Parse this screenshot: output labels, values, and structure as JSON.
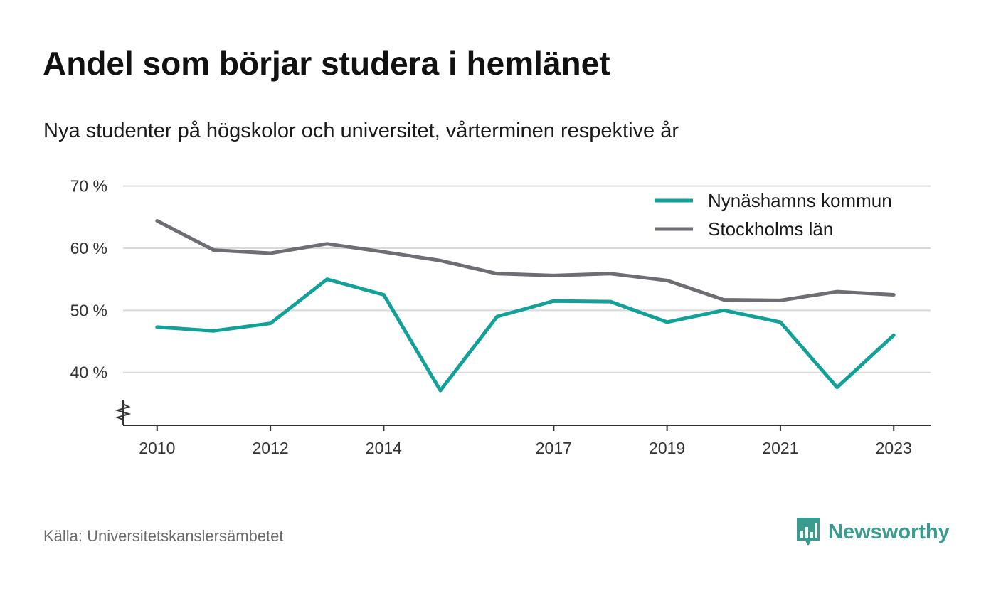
{
  "title": "Andel som börjar studera i hemlänet",
  "subtitle": "Nya studenter på högskolor och universitet, vårterminen respektive år",
  "source": "Källa: Universitetskanslersämbetet",
  "brand": "Newsworthy",
  "colors": {
    "nynashamn": "#12a198",
    "stockholm": "#6e6d73",
    "grid": "#d9d9d9",
    "axis": "#333333",
    "brand": "#3a9c8f"
  },
  "chart_data": {
    "type": "line",
    "title": "Andel som börjar studera i hemlänet",
    "subtitle": "Nya studenter på högskolor och universitet, vårterminen respektive år",
    "x": [
      2010,
      2011,
      2012,
      2013,
      2014,
      2015,
      2016,
      2017,
      2018,
      2019,
      2020,
      2021,
      2022,
      2023
    ],
    "x_tick_labels": [
      "2010",
      "2012",
      "2014",
      "2017",
      "2019",
      "2021",
      "2023"
    ],
    "y_tick_labels": [
      "70 %",
      "60 %",
      "50 %",
      "40 %"
    ],
    "y_ticks": [
      70,
      60,
      50,
      40
    ],
    "xlim": [
      2009.4,
      2023.65
    ],
    "ylim": [
      31.5,
      73.5
    ],
    "y_axis_break": true,
    "grid": true,
    "legend_position": "top-right",
    "series": [
      {
        "name": "Nynäshamns kommun",
        "color": "#12a198",
        "values": [
          47.3,
          46.7,
          47.9,
          55.0,
          52.5,
          37.1,
          49.0,
          51.5,
          51.4,
          48.1,
          50.0,
          48.1,
          37.6,
          46.0
        ]
      },
      {
        "name": "Stockholms län",
        "color": "#6e6d73",
        "values": [
          64.4,
          59.7,
          59.2,
          60.7,
          59.4,
          58.0,
          55.9,
          55.6,
          55.9,
          54.8,
          51.7,
          51.6,
          53.0,
          52.5
        ]
      }
    ]
  }
}
